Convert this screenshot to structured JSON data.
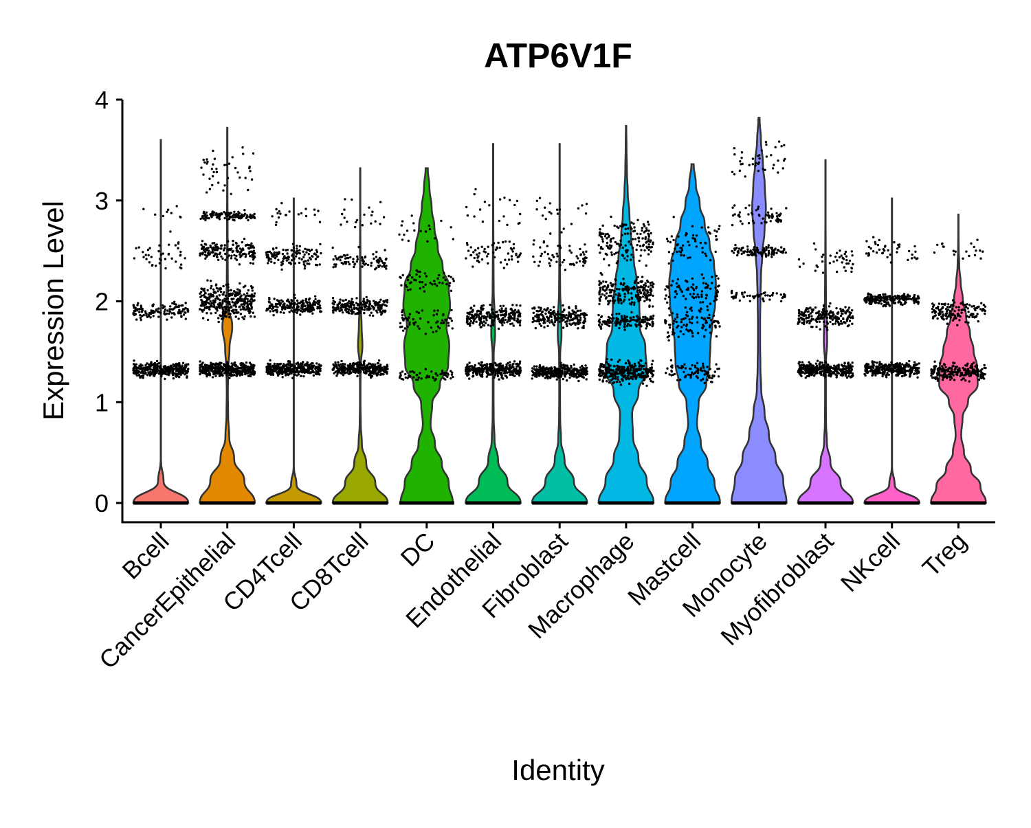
{
  "chart_data": {
    "type": "violin",
    "title": "ATP6V1F",
    "xlabel": "Identity",
    "ylabel": "Expression Level",
    "ylim": [
      -0.18,
      4
    ],
    "yticks": [
      0,
      1,
      2,
      3,
      4
    ],
    "ytick_labels": [
      "0",
      "1",
      "2",
      "3",
      "4"
    ],
    "grid": false,
    "legend": "none",
    "point_color": "#000000",
    "categories": [
      {
        "name": "Bcell",
        "color": "#F8766D",
        "max": 3.6,
        "widths": [
          1.0,
          0.1,
          0.005,
          0.005,
          0.005,
          0.005,
          0.005,
          0.005,
          0.005,
          0.005,
          0.005,
          0.005,
          0.005,
          0.005,
          0.005,
          0.005,
          0.005,
          0.005
        ],
        "bands": [
          {
            "y": 0,
            "n": 0
          },
          {
            "y": 1.32,
            "n": 320,
            "spread": 0.1
          },
          {
            "y": 1.9,
            "n": 120,
            "spread": 0.12
          },
          {
            "y": 2.45,
            "n": 40,
            "spread": 0.2
          },
          {
            "y": 2.9,
            "n": 10,
            "spread": 0.3
          }
        ]
      },
      {
        "name": "CancerEpithelial",
        "color": "#E38900",
        "max": 3.72,
        "widths": [
          1.0,
          0.62,
          0.25,
          0.07,
          0.03,
          0.02,
          0.03,
          0.08,
          0.18,
          0.03,
          0.02,
          0.015,
          0.012,
          0.01,
          0.008,
          0.006,
          0.005,
          0.004
        ],
        "bands": [
          {
            "y": 1.32,
            "n": 380,
            "spread": 0.1
          },
          {
            "y": 2.0,
            "n": 320,
            "spread": 0.25
          },
          {
            "y": 2.5,
            "n": 160,
            "spread": 0.15
          },
          {
            "y": 2.85,
            "n": 120,
            "spread": 0.06
          },
          {
            "y": 3.3,
            "n": 40,
            "spread": 0.3
          }
        ]
      },
      {
        "name": "CD4Tcell",
        "color": "#C49A00",
        "max": 3.02,
        "widths": [
          1.0,
          0.1,
          0.005,
          0.005,
          0.005,
          0.005,
          0.005,
          0.005,
          0.005,
          0.005,
          0.005,
          0.005,
          0.005,
          0.005,
          0.005,
          0.005,
          0.005,
          0.005
        ],
        "bands": [
          {
            "y": 1.33,
            "n": 320,
            "spread": 0.1
          },
          {
            "y": 1.95,
            "n": 200,
            "spread": 0.12
          },
          {
            "y": 2.45,
            "n": 120,
            "spread": 0.15
          },
          {
            "y": 2.85,
            "n": 20,
            "spread": 0.15
          }
        ]
      },
      {
        "name": "CD8Tcell",
        "color": "#99A800",
        "max": 3.32,
        "widths": [
          1.0,
          0.55,
          0.22,
          0.06,
          0.02,
          0.01,
          0.01,
          0.02,
          0.08,
          0.05,
          0.02,
          0.012,
          0.01,
          0.008,
          0.006,
          0.005,
          0.004,
          0.003
        ],
        "bands": [
          {
            "y": 1.33,
            "n": 320,
            "spread": 0.1
          },
          {
            "y": 1.95,
            "n": 200,
            "spread": 0.12
          },
          {
            "y": 2.4,
            "n": 80,
            "spread": 0.15
          },
          {
            "y": 2.85,
            "n": 20,
            "spread": 0.25
          }
        ]
      },
      {
        "name": "DC",
        "color": "#1FB300",
        "max": 3.32,
        "widths": [
          0.95,
          0.8,
          0.55,
          0.3,
          0.14,
          0.2,
          0.48,
          0.78,
          0.82,
          0.72,
          0.85,
          0.8,
          0.58,
          0.4,
          0.28,
          0.18,
          0.1,
          0.04
        ],
        "bands": [
          {
            "y": 1.27,
            "n": 60,
            "spread": 0.08
          },
          {
            "y": 1.8,
            "n": 60,
            "spread": 0.2
          },
          {
            "y": 2.2,
            "n": 50,
            "spread": 0.15
          },
          {
            "y": 2.7,
            "n": 20,
            "spread": 0.25
          }
        ]
      },
      {
        "name": "Endothelial",
        "color": "#00BC56",
        "max": 3.56,
        "widths": [
          1.0,
          0.52,
          0.18,
          0.05,
          0.02,
          0.015,
          0.015,
          0.02,
          0.07,
          0.05,
          0.02,
          0.015,
          0.01,
          0.008,
          0.006,
          0.005,
          0.004,
          0.003
        ],
        "bands": [
          {
            "y": 1.32,
            "n": 320,
            "spread": 0.1
          },
          {
            "y": 1.85,
            "n": 220,
            "spread": 0.15
          },
          {
            "y": 2.5,
            "n": 60,
            "spread": 0.2
          },
          {
            "y": 2.9,
            "n": 20,
            "spread": 0.3
          }
        ]
      },
      {
        "name": "Fibroblast",
        "color": "#00BFA4",
        "max": 3.56,
        "widths": [
          1.0,
          0.52,
          0.18,
          0.05,
          0.02,
          0.015,
          0.015,
          0.02,
          0.07,
          0.05,
          0.02,
          0.015,
          0.01,
          0.008,
          0.006,
          0.005,
          0.004,
          0.003
        ],
        "bands": [
          {
            "y": 1.3,
            "n": 320,
            "spread": 0.1
          },
          {
            "y": 1.85,
            "n": 200,
            "spread": 0.15
          },
          {
            "y": 2.45,
            "n": 60,
            "spread": 0.2
          },
          {
            "y": 2.9,
            "n": 20,
            "spread": 0.3
          }
        ]
      },
      {
        "name": "Macrophage",
        "color": "#00B8E3",
        "max": 3.74,
        "widths": [
          1.0,
          0.75,
          0.45,
          0.25,
          0.22,
          0.45,
          0.75,
          0.7,
          0.5,
          0.48,
          0.38,
          0.28,
          0.18,
          0.12,
          0.06,
          0.03,
          0.015,
          0.008
        ],
        "bands": [
          {
            "y": 1.3,
            "n": 300,
            "spread": 0.15
          },
          {
            "y": 1.8,
            "n": 150,
            "spread": 0.1
          },
          {
            "y": 2.1,
            "n": 200,
            "spread": 0.2
          },
          {
            "y": 2.6,
            "n": 150,
            "spread": 0.3
          }
        ]
      },
      {
        "name": "Mastcell",
        "color": "#00A5FF",
        "max": 3.36,
        "widths": [
          1.0,
          0.8,
          0.55,
          0.3,
          0.16,
          0.22,
          0.5,
          0.62,
          0.65,
          0.72,
          0.82,
          0.85,
          0.78,
          0.62,
          0.44,
          0.26,
          0.12,
          0.04
        ],
        "bands": [
          {
            "y": 1.3,
            "n": 80,
            "spread": 0.15
          },
          {
            "y": 1.8,
            "n": 100,
            "spread": 0.25
          },
          {
            "y": 2.1,
            "n": 80,
            "spread": 0.2
          },
          {
            "y": 2.6,
            "n": 60,
            "spread": 0.3
          }
        ]
      },
      {
        "name": "Monocyte",
        "color": "#8A8CFF",
        "max": 3.82,
        "widths": [
          1.0,
          0.88,
          0.6,
          0.36,
          0.2,
          0.08,
          0.05,
          0.04,
          0.04,
          0.05,
          0.07,
          0.12,
          0.2,
          0.25,
          0.21,
          0.14,
          0.07,
          0.02
        ],
        "bands": [
          {
            "y": 2.05,
            "n": 50,
            "spread": 0.08
          },
          {
            "y": 2.5,
            "n": 100,
            "spread": 0.08
          },
          {
            "y": 2.85,
            "n": 60,
            "spread": 0.15
          },
          {
            "y": 3.4,
            "n": 40,
            "spread": 0.3
          }
        ]
      },
      {
        "name": "Myofibroblast",
        "color": "#D674FF",
        "max": 3.4,
        "widths": [
          1.0,
          0.55,
          0.18,
          0.05,
          0.02,
          0.015,
          0.015,
          0.02,
          0.06,
          0.05,
          0.02,
          0.015,
          0.01,
          0.008,
          0.006,
          0.005,
          0.004,
          0.003
        ],
        "bands": [
          {
            "y": 1.32,
            "n": 320,
            "spread": 0.1
          },
          {
            "y": 1.85,
            "n": 200,
            "spread": 0.15
          },
          {
            "y": 2.4,
            "n": 40,
            "spread": 0.2
          }
        ]
      },
      {
        "name": "NKcell",
        "color": "#FF61C9",
        "max": 3.02,
        "widths": [
          1.0,
          0.1,
          0.005,
          0.005,
          0.005,
          0.005,
          0.005,
          0.005,
          0.005,
          0.005,
          0.005,
          0.005,
          0.005,
          0.005,
          0.005,
          0.005,
          0.005,
          0.005
        ],
        "bands": [
          {
            "y": 1.33,
            "n": 300,
            "spread": 0.1
          },
          {
            "y": 2.02,
            "n": 220,
            "spread": 0.08
          },
          {
            "y": 2.5,
            "n": 40,
            "spread": 0.2
          }
        ]
      },
      {
        "name": "Treg",
        "color": "#FF68A1",
        "max": 2.86,
        "widths": [
          1.0,
          0.8,
          0.45,
          0.2,
          0.1,
          0.15,
          0.35,
          0.7,
          0.68,
          0.55,
          0.42,
          0.28,
          0.16,
          0.08,
          0.03,
          0.01,
          0.005,
          0.003
        ],
        "bands": [
          {
            "y": 1.3,
            "n": 220,
            "spread": 0.12
          },
          {
            "y": 1.9,
            "n": 140,
            "spread": 0.15
          },
          {
            "y": 2.5,
            "n": 20,
            "spread": 0.2
          }
        ]
      }
    ]
  }
}
